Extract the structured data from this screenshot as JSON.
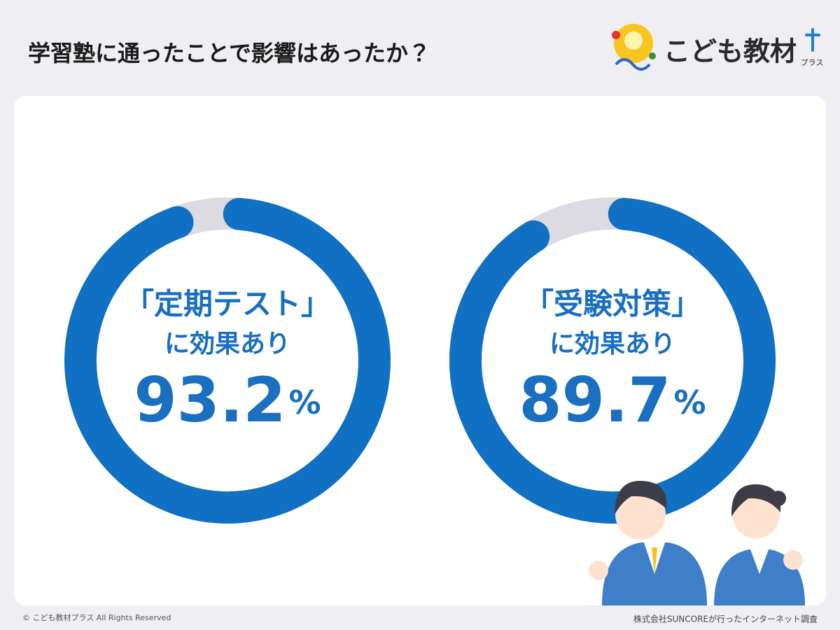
{
  "header": {
    "title": "学習塾に通ったことで影響はあったか？",
    "logo": "こども教材",
    "logo_sub": "プラス"
  },
  "chart_data": [
    {
      "type": "donut",
      "label": "「定期テスト」",
      "sublabel": "に効果あり",
      "values": [
        93.2
      ],
      "unit": "%",
      "color": "#0f70c4",
      "track_color": "#dcdbe1"
    },
    {
      "type": "donut",
      "label": "「受験対策」",
      "sublabel": "に効果あり",
      "values": [
        89.7
      ],
      "unit": "%",
      "color": "#0f70c4",
      "track_color": "#dcdbe1"
    }
  ],
  "footer": {
    "copyright": "© こども教材プラス All Rights Reserved",
    "source": "株式会社SUNCOREが行ったインターネット調査"
  }
}
